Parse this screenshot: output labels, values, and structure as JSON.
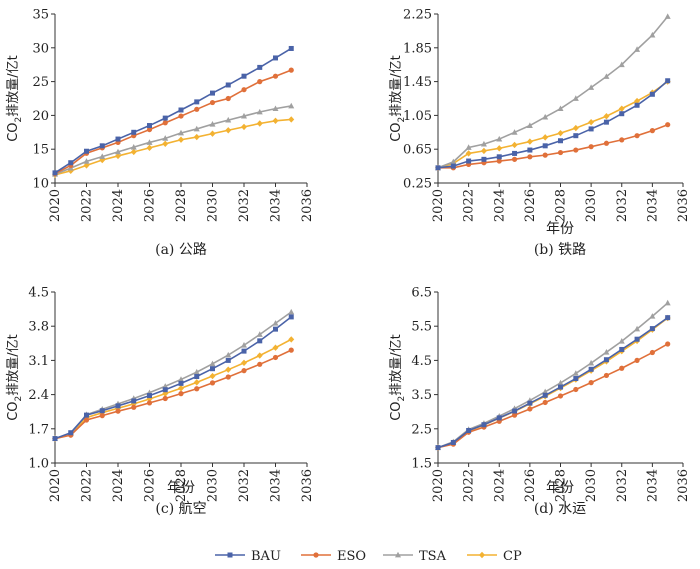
{
  "chart_data": [
    {
      "type": "line",
      "caption": "(a) 公路",
      "xlabel": "",
      "ylabel": "CO2排放量/亿t",
      "xlim": [
        2020,
        2036
      ],
      "xticks": [
        2020,
        2022,
        2024,
        2026,
        2028,
        2030,
        2032,
        2034,
        2036
      ],
      "ylim": [
        10,
        35
      ],
      "yticks": [
        10,
        15,
        20,
        25,
        30,
        35
      ],
      "x": [
        2020,
        2021,
        2022,
        2023,
        2024,
        2025,
        2026,
        2027,
        2028,
        2029,
        2030,
        2031,
        2032,
        2033,
        2034,
        2035
      ],
      "series": [
        {
          "name": "BAU",
          "values": [
            11.5,
            13.0,
            14.7,
            15.5,
            16.5,
            17.5,
            18.5,
            19.6,
            20.8,
            22.0,
            23.3,
            24.5,
            25.8,
            27.1,
            28.5,
            29.9
          ]
        },
        {
          "name": "ESO",
          "values": [
            11.4,
            12.6,
            14.4,
            15.2,
            16.0,
            17.0,
            17.9,
            18.9,
            19.9,
            20.9,
            21.9,
            22.5,
            23.8,
            25.0,
            25.8,
            26.7
          ]
        },
        {
          "name": "TSA",
          "values": [
            11.3,
            12.2,
            13.2,
            13.9,
            14.6,
            15.3,
            16.0,
            16.6,
            17.4,
            18.0,
            18.7,
            19.3,
            19.9,
            20.5,
            21.0,
            21.4
          ]
        },
        {
          "name": "CP",
          "values": [
            11.2,
            11.8,
            12.6,
            13.4,
            14.0,
            14.6,
            15.2,
            15.8,
            16.4,
            16.8,
            17.3,
            17.8,
            18.3,
            18.8,
            19.2,
            19.4
          ]
        }
      ]
    },
    {
      "type": "line",
      "caption": "(b) 铁路",
      "xlabel": "年份",
      "ylabel": "CO2排放量/亿t",
      "xlim": [
        2020,
        2036
      ],
      "xticks": [
        2020,
        2022,
        2024,
        2026,
        2028,
        2030,
        2032,
        2034,
        2036
      ],
      "ylim": [
        0.25,
        2.25
      ],
      "yticks": [
        0.25,
        0.65,
        1.05,
        1.45,
        1.85,
        2.25
      ],
      "x": [
        2020,
        2021,
        2022,
        2023,
        2024,
        2025,
        2026,
        2027,
        2028,
        2029,
        2030,
        2031,
        2032,
        2033,
        2034,
        2035
      ],
      "series": [
        {
          "name": "BAU",
          "values": [
            0.43,
            0.45,
            0.51,
            0.53,
            0.56,
            0.6,
            0.64,
            0.69,
            0.75,
            0.81,
            0.89,
            0.97,
            1.07,
            1.17,
            1.3,
            1.46
          ]
        },
        {
          "name": "ESO",
          "values": [
            0.43,
            0.43,
            0.47,
            0.49,
            0.51,
            0.53,
            0.56,
            0.58,
            0.61,
            0.64,
            0.68,
            0.72,
            0.76,
            0.81,
            0.87,
            0.94
          ]
        },
        {
          "name": "TSA",
          "values": [
            0.43,
            0.5,
            0.67,
            0.71,
            0.77,
            0.85,
            0.93,
            1.03,
            1.13,
            1.25,
            1.38,
            1.51,
            1.65,
            1.83,
            2.0,
            2.22
          ]
        },
        {
          "name": "CP",
          "values": [
            0.43,
            0.48,
            0.6,
            0.63,
            0.66,
            0.7,
            0.74,
            0.79,
            0.84,
            0.9,
            0.97,
            1.04,
            1.13,
            1.22,
            1.32,
            1.45
          ]
        }
      ]
    },
    {
      "type": "line",
      "caption": "(c) 航空",
      "xlabel": "年份",
      "ylabel": "CO2排放量/亿t",
      "xlim": [
        2020,
        2036
      ],
      "xticks": [
        2020,
        2022,
        2024,
        2026,
        2028,
        2030,
        2032,
        2034,
        2036
      ],
      "ylim": [
        1.0,
        4.5
      ],
      "yticks": [
        1.0,
        1.7,
        2.4,
        3.1,
        3.8,
        4.5
      ],
      "x": [
        2020,
        2021,
        2022,
        2023,
        2024,
        2025,
        2026,
        2027,
        2028,
        2029,
        2030,
        2031,
        2032,
        2033,
        2034,
        2035
      ],
      "series": [
        {
          "name": "BAU",
          "values": [
            1.5,
            1.62,
            1.98,
            2.07,
            2.17,
            2.27,
            2.38,
            2.5,
            2.63,
            2.77,
            2.93,
            3.1,
            3.29,
            3.5,
            3.74,
            3.99
          ]
        },
        {
          "name": "ESO",
          "values": [
            1.5,
            1.57,
            1.88,
            1.97,
            2.06,
            2.14,
            2.23,
            2.32,
            2.42,
            2.52,
            2.64,
            2.76,
            2.89,
            3.02,
            3.16,
            3.31
          ]
        },
        {
          "name": "TSA",
          "values": [
            1.5,
            1.6,
            1.99,
            2.1,
            2.21,
            2.32,
            2.44,
            2.57,
            2.71,
            2.86,
            3.03,
            3.21,
            3.41,
            3.63,
            3.86,
            4.09
          ]
        },
        {
          "name": "CP",
          "values": [
            1.5,
            1.58,
            1.93,
            2.03,
            2.12,
            2.21,
            2.31,
            2.42,
            2.53,
            2.65,
            2.78,
            2.91,
            3.05,
            3.2,
            3.36,
            3.53
          ]
        }
      ]
    },
    {
      "type": "line",
      "caption": "(d) 水运",
      "xlabel": "年份",
      "ylabel": "CO2排放量/亿t",
      "xlim": [
        2020,
        2036
      ],
      "xticks": [
        2020,
        2022,
        2024,
        2026,
        2028,
        2030,
        2032,
        2034,
        2036
      ],
      "ylim": [
        1.5,
        6.5
      ],
      "yticks": [
        1.5,
        2.5,
        3.5,
        4.5,
        5.5,
        6.5
      ],
      "x": [
        2020,
        2021,
        2022,
        2023,
        2024,
        2025,
        2026,
        2027,
        2028,
        2029,
        2030,
        2031,
        2032,
        2033,
        2034,
        2035
      ],
      "series": [
        {
          "name": "BAU",
          "values": [
            1.95,
            2.1,
            2.45,
            2.62,
            2.82,
            3.02,
            3.25,
            3.48,
            3.72,
            3.97,
            4.24,
            4.52,
            4.82,
            5.12,
            5.43,
            5.75
          ]
        },
        {
          "name": "ESO",
          "values": [
            1.95,
            2.05,
            2.4,
            2.55,
            2.72,
            2.9,
            3.08,
            3.27,
            3.46,
            3.65,
            3.85,
            4.06,
            4.27,
            4.5,
            4.73,
            4.98
          ]
        },
        {
          "name": "TSA",
          "values": [
            1.95,
            2.12,
            2.48,
            2.66,
            2.87,
            3.09,
            3.33,
            3.58,
            3.84,
            4.12,
            4.42,
            4.74,
            5.06,
            5.42,
            5.79,
            6.18
          ]
        },
        {
          "name": "CP",
          "values": [
            1.95,
            2.09,
            2.44,
            2.61,
            2.81,
            3.01,
            3.23,
            3.45,
            3.69,
            3.94,
            4.2,
            4.47,
            4.77,
            5.07,
            5.4,
            5.74
          ]
        }
      ]
    }
  ],
  "legend": {
    "placement": "bottom",
    "items": [
      {
        "name": "BAU",
        "color": "#4a63a8",
        "marker": "square"
      },
      {
        "name": "ESO",
        "color": "#e0703a",
        "marker": "circle"
      },
      {
        "name": "TSA",
        "color": "#a0a0a0",
        "marker": "triangle"
      },
      {
        "name": "CP",
        "color": "#f3b232",
        "marker": "diamond"
      }
    ]
  }
}
